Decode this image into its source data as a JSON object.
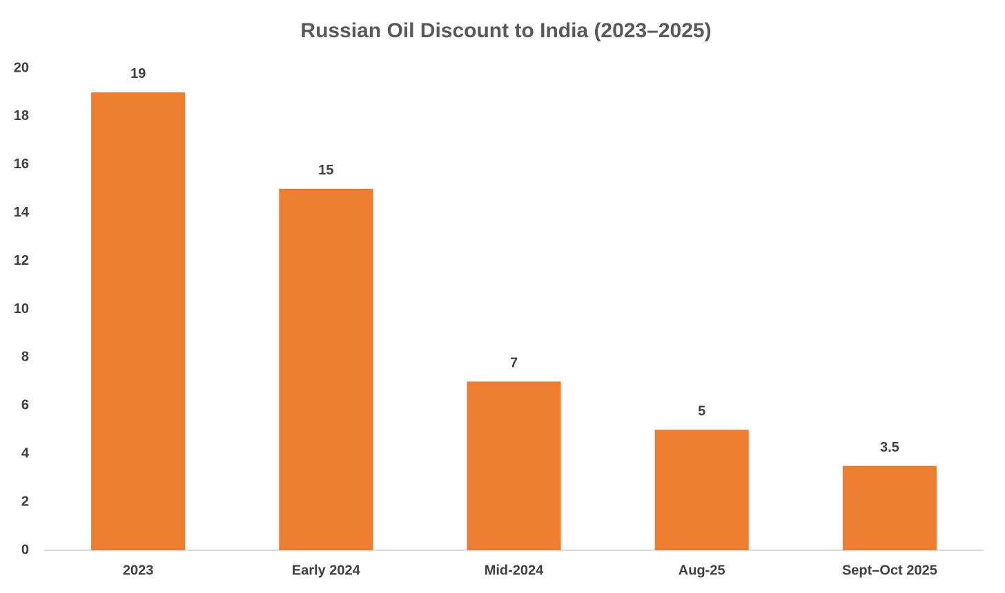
{
  "chart_data": {
    "type": "bar",
    "title": "Russian Oil Discount to India (2023–2025)",
    "categories": [
      "2023",
      "Early 2024",
      "Mid-2024",
      "Aug-25",
      "Sept–Oct 2025"
    ],
    "values": [
      19,
      15,
      7,
      5,
      3.5
    ],
    "color": "#ed7d31",
    "ylim": [
      0,
      20
    ],
    "yticks": [
      0,
      2,
      4,
      6,
      8,
      10,
      12,
      14,
      16,
      18,
      20
    ],
    "grid": false
  }
}
